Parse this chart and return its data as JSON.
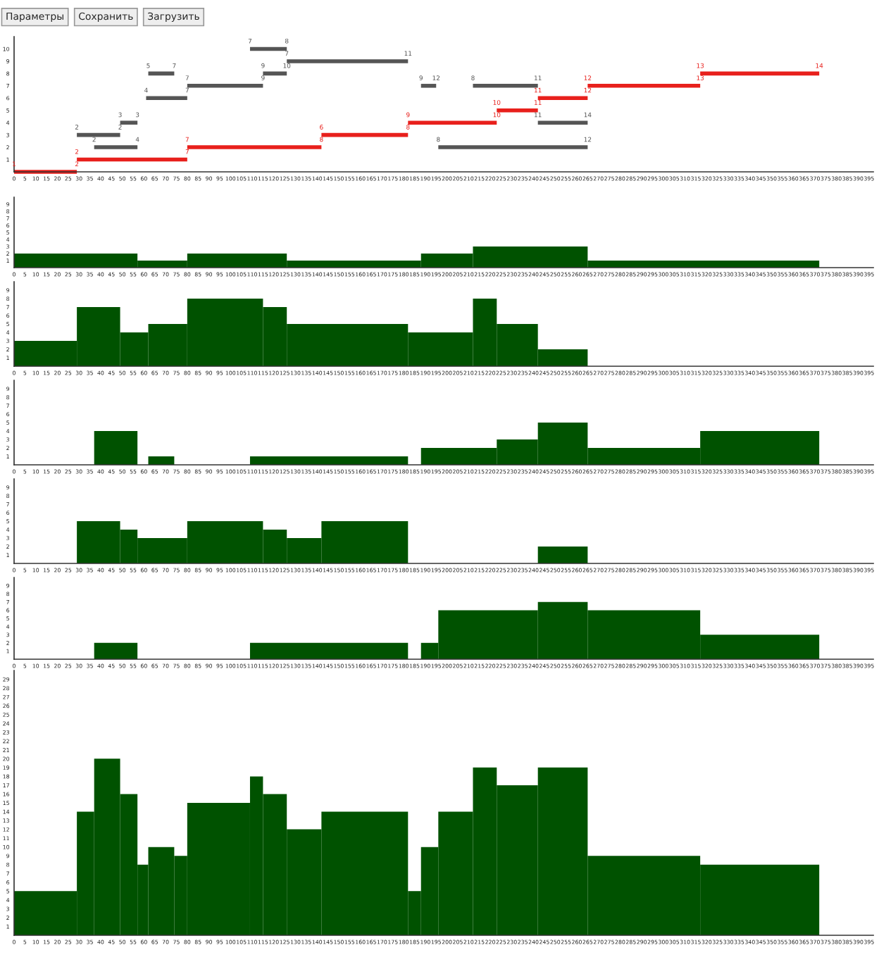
{
  "chart_data": [
    {
      "type": "other",
      "annotations": [
        "Параметры",
        "Сохранить",
        "Загрузить"
      ]
    },
    {
      "type": "line",
      "grid": false,
      "line_style": "solid",
      "marker": "none",
      "xlim": [
        0,
        397
      ],
      "xticks": [
        0,
        5,
        10,
        15,
        20,
        25,
        30,
        35,
        40,
        45,
        50,
        55,
        60,
        65,
        70,
        75,
        80,
        85,
        90,
        95,
        100,
        105,
        110,
        115,
        120,
        125,
        130,
        135,
        140,
        145,
        150,
        155,
        160,
        165,
        170,
        175,
        180,
        185,
        190,
        195,
        200,
        205,
        210,
        215,
        220,
        225,
        230,
        235,
        240,
        245,
        250,
        255,
        260,
        265,
        270,
        275,
        280,
        285,
        290,
        295,
        300,
        305,
        310,
        315,
        320,
        325,
        330,
        335,
        340,
        345,
        350,
        355,
        360,
        365,
        370,
        375,
        380,
        385,
        390,
        395
      ],
      "ylim": [
        0,
        11
      ],
      "yticks": [
        1,
        2,
        3,
        4,
        5,
        6,
        7,
        8,
        9,
        10
      ],
      "series": [
        {
          "color": "#e8201c",
          "x": [
            0,
            29
          ],
          "values": [
            0,
            0
          ]
        },
        {
          "color": "#e8201c",
          "x": [
            29,
            80
          ],
          "values": [
            1,
            1
          ]
        },
        {
          "color": "#555555",
          "x": [
            37,
            57
          ],
          "values": [
            2,
            2
          ]
        },
        {
          "color": "#e8201c",
          "x": [
            80,
            142
          ],
          "values": [
            2,
            2
          ]
        },
        {
          "color": "#555555",
          "x": [
            196,
            265
          ],
          "values": [
            2,
            2
          ]
        },
        {
          "color": "#555555",
          "x": [
            29,
            49
          ],
          "values": [
            3,
            3
          ]
        },
        {
          "color": "#e8201c",
          "x": [
            142,
            182
          ],
          "values": [
            3,
            3
          ]
        },
        {
          "color": "#555555",
          "x": [
            49,
            57
          ],
          "values": [
            4,
            4
          ]
        },
        {
          "color": "#e8201c",
          "x": [
            182,
            223
          ],
          "values": [
            4,
            4
          ]
        },
        {
          "color": "#555555",
          "x": [
            242,
            265
          ],
          "values": [
            4,
            4
          ]
        },
        {
          "color": "#e8201c",
          "x": [
            223,
            242
          ],
          "values": [
            5,
            5
          ]
        },
        {
          "color": "#555555",
          "x": [
            61,
            80
          ],
          "values": [
            6,
            6
          ]
        },
        {
          "color": "#e8201c",
          "x": [
            242,
            265
          ],
          "values": [
            6,
            6
          ]
        },
        {
          "color": "#555555",
          "x": [
            80,
            115
          ],
          "values": [
            7,
            7
          ]
        },
        {
          "color": "#555555",
          "x": [
            188,
            195
          ],
          "values": [
            7,
            7
          ]
        },
        {
          "color": "#555555",
          "x": [
            212,
            242
          ],
          "values": [
            7,
            7
          ]
        },
        {
          "color": "#e8201c",
          "x": [
            265,
            317
          ],
          "values": [
            7,
            7
          ]
        },
        {
          "color": "#555555",
          "x": [
            62,
            74
          ],
          "values": [
            8,
            8
          ]
        },
        {
          "color": "#555555",
          "x": [
            115,
            126
          ],
          "values": [
            8,
            8
          ]
        },
        {
          "color": "#e8201c",
          "x": [
            317,
            372
          ],
          "values": [
            8,
            8
          ]
        },
        {
          "color": "#555555",
          "x": [
            126,
            182
          ],
          "values": [
            9,
            9
          ]
        },
        {
          "color": "#555555",
          "x": [
            109,
            126
          ],
          "values": [
            10,
            10
          ]
        }
      ],
      "annotations": [
        {
          "text": "1",
          "x": 0,
          "y": 0
        },
        {
          "text": "2",
          "x": 29,
          "y": 0
        },
        {
          "text": "2",
          "x": 29,
          "y": 1
        },
        {
          "text": "7",
          "x": 80,
          "y": 1
        },
        {
          "text": "2",
          "x": 37,
          "y": 2
        },
        {
          "text": "4",
          "x": 57,
          "y": 2
        },
        {
          "text": "7",
          "x": 80,
          "y": 2
        },
        {
          "text": "8",
          "x": 142,
          "y": 2
        },
        {
          "text": "8",
          "x": 196,
          "y": 2
        },
        {
          "text": "12",
          "x": 265,
          "y": 2
        },
        {
          "text": "2",
          "x": 29,
          "y": 3
        },
        {
          "text": "2",
          "x": 49,
          "y": 3
        },
        {
          "text": "6",
          "x": 142,
          "y": 3
        },
        {
          "text": "8",
          "x": 182,
          "y": 3
        },
        {
          "text": "3",
          "x": 49,
          "y": 4
        },
        {
          "text": "3",
          "x": 57,
          "y": 4
        },
        {
          "text": "9",
          "x": 182,
          "y": 4
        },
        {
          "text": "10",
          "x": 223,
          "y": 4
        },
        {
          "text": "11",
          "x": 242,
          "y": 4
        },
        {
          "text": "14",
          "x": 265,
          "y": 4
        },
        {
          "text": "10",
          "x": 223,
          "y": 5
        },
        {
          "text": "11",
          "x": 242,
          "y": 5
        },
        {
          "text": "4",
          "x": 61,
          "y": 6
        },
        {
          "text": "7",
          "x": 80,
          "y": 6
        },
        {
          "text": "11",
          "x": 242,
          "y": 6
        },
        {
          "text": "12",
          "x": 265,
          "y": 6
        },
        {
          "text": "7",
          "x": 80,
          "y": 7
        },
        {
          "text": "9",
          "x": 115,
          "y": 7
        },
        {
          "text": "9",
          "x": 188,
          "y": 7
        },
        {
          "text": "12",
          "x": 195,
          "y": 7
        },
        {
          "text": "8",
          "x": 212,
          "y": 7
        },
        {
          "text": "11",
          "x": 242,
          "y": 7
        },
        {
          "text": "12",
          "x": 265,
          "y": 7
        },
        {
          "text": "13",
          "x": 317,
          "y": 7
        },
        {
          "text": "5",
          "x": 62,
          "y": 8
        },
        {
          "text": "7",
          "x": 74,
          "y": 8
        },
        {
          "text": "9",
          "x": 115,
          "y": 8
        },
        {
          "text": "10",
          "x": 126,
          "y": 8
        },
        {
          "text": "13",
          "x": 317,
          "y": 8
        },
        {
          "text": "14",
          "x": 372,
          "y": 8
        },
        {
          "text": "7",
          "x": 126,
          "y": 9
        },
        {
          "text": "11",
          "x": 182,
          "y": 9
        },
        {
          "text": "7",
          "x": 109,
          "y": 10
        },
        {
          "text": "8",
          "x": 126,
          "y": 10
        }
      ]
    },
    {
      "type": "histogram",
      "color": "#005200",
      "grid": false,
      "bins": [
        0,
        57,
        80,
        126,
        188,
        212,
        265,
        372
      ],
      "values": [
        2,
        1,
        2,
        1,
        2,
        3,
        1
      ],
      "xlim": [
        0,
        397
      ],
      "xticks": [
        0,
        5,
        10,
        15,
        20,
        25,
        30,
        35,
        40,
        45,
        50,
        55,
        60,
        65,
        70,
        75,
        80,
        85,
        90,
        95,
        100,
        105,
        110,
        115,
        120,
        125,
        130,
        135,
        140,
        145,
        150,
        155,
        160,
        165,
        170,
        175,
        180,
        185,
        190,
        195,
        200,
        205,
        210,
        215,
        220,
        225,
        230,
        235,
        240,
        245,
        250,
        255,
        260,
        265,
        270,
        275,
        280,
        285,
        290,
        295,
        300,
        305,
        310,
        315,
        320,
        325,
        330,
        335,
        340,
        345,
        350,
        355,
        360,
        365,
        370,
        375,
        380,
        385,
        390,
        395
      ],
      "ylim": [
        0,
        10
      ],
      "yticks": [
        1,
        2,
        3,
        4,
        5,
        6,
        7,
        8,
        9
      ]
    },
    {
      "type": "histogram",
      "color": "#005200",
      "grid": false,
      "bins": [
        0,
        29,
        49,
        62,
        80,
        115,
        126,
        182,
        212,
        223,
        242,
        265
      ],
      "values": [
        3,
        7,
        4,
        5,
        8,
        7,
        5,
        4,
        8,
        5,
        2
      ],
      "xlim": [
        0,
        397
      ],
      "xticks": [
        0,
        5,
        10,
        15,
        20,
        25,
        30,
        35,
        40,
        45,
        50,
        55,
        60,
        65,
        70,
        75,
        80,
        85,
        90,
        95,
        100,
        105,
        110,
        115,
        120,
        125,
        130,
        135,
        140,
        145,
        150,
        155,
        160,
        165,
        170,
        175,
        180,
        185,
        190,
        195,
        200,
        205,
        210,
        215,
        220,
        225,
        230,
        235,
        240,
        245,
        250,
        255,
        260,
        265,
        270,
        275,
        280,
        285,
        290,
        295,
        300,
        305,
        310,
        315,
        320,
        325,
        330,
        335,
        340,
        345,
        350,
        355,
        360,
        365,
        370,
        375,
        380,
        385,
        390,
        395
      ],
      "ylim": [
        0,
        10
      ],
      "yticks": [
        1,
        2,
        3,
        4,
        5,
        6,
        7,
        8,
        9
      ]
    },
    {
      "type": "histogram",
      "color": "#005200",
      "grid": false,
      "bins": [
        37,
        57,
        62,
        74,
        109,
        182,
        188,
        223,
        242,
        265,
        317,
        372
      ],
      "values": [
        4,
        0,
        1,
        0,
        1,
        0,
        2,
        3,
        5,
        2,
        4
      ],
      "xlim": [
        0,
        397
      ],
      "xticks": [
        0,
        5,
        10,
        15,
        20,
        25,
        30,
        35,
        40,
        45,
        50,
        55,
        60,
        65,
        70,
        75,
        80,
        85,
        90,
        95,
        100,
        105,
        110,
        115,
        120,
        125,
        130,
        135,
        140,
        145,
        150,
        155,
        160,
        165,
        170,
        175,
        180,
        185,
        190,
        195,
        200,
        205,
        210,
        215,
        220,
        225,
        230,
        235,
        240,
        245,
        250,
        255,
        260,
        265,
        270,
        275,
        280,
        285,
        290,
        295,
        300,
        305,
        310,
        315,
        320,
        325,
        330,
        335,
        340,
        345,
        350,
        355,
        360,
        365,
        370,
        375,
        380,
        385,
        390,
        395
      ],
      "ylim": [
        0,
        10
      ],
      "yticks": [
        1,
        2,
        3,
        4,
        5,
        6,
        7,
        8,
        9
      ]
    },
    {
      "type": "histogram",
      "color": "#005200",
      "grid": false,
      "bins": [
        29,
        49,
        57,
        80,
        115,
        126,
        142,
        182,
        242,
        265
      ],
      "values": [
        5,
        4,
        3,
        5,
        4,
        3,
        5,
        0,
        2
      ],
      "xlim": [
        0,
        397
      ],
      "xticks": [
        0,
        5,
        10,
        15,
        20,
        25,
        30,
        35,
        40,
        45,
        50,
        55,
        60,
        65,
        70,
        75,
        80,
        85,
        90,
        95,
        100,
        105,
        110,
        115,
        120,
        125,
        130,
        135,
        140,
        145,
        150,
        155,
        160,
        165,
        170,
        175,
        180,
        185,
        190,
        195,
        200,
        205,
        210,
        215,
        220,
        225,
        230,
        235,
        240,
        245,
        250,
        255,
        260,
        265,
        270,
        275,
        280,
        285,
        290,
        295,
        300,
        305,
        310,
        315,
        320,
        325,
        330,
        335,
        340,
        345,
        350,
        355,
        360,
        365,
        370,
        375,
        380,
        385,
        390,
        395
      ],
      "ylim": [
        0,
        10
      ],
      "yticks": [
        1,
        2,
        3,
        4,
        5,
        6,
        7,
        8,
        9
      ]
    },
    {
      "type": "histogram",
      "color": "#005200",
      "grid": false,
      "bins": [
        37,
        57,
        109,
        182,
        188,
        196,
        242,
        265,
        317,
        372
      ],
      "values": [
        2,
        0,
        2,
        0,
        2,
        6,
        7,
        6,
        3
      ],
      "xlim": [
        0,
        397
      ],
      "xticks": [
        0,
        5,
        10,
        15,
        20,
        25,
        30,
        35,
        40,
        45,
        50,
        55,
        60,
        65,
        70,
        75,
        80,
        85,
        90,
        95,
        100,
        105,
        110,
        115,
        120,
        125,
        130,
        135,
        140,
        145,
        150,
        155,
        160,
        165,
        170,
        175,
        180,
        185,
        190,
        195,
        200,
        205,
        210,
        215,
        220,
        225,
        230,
        235,
        240,
        245,
        250,
        255,
        260,
        265,
        270,
        275,
        280,
        285,
        290,
        295,
        300,
        305,
        310,
        315,
        320,
        325,
        330,
        335,
        340,
        345,
        350,
        355,
        360,
        365,
        370,
        375,
        380,
        385,
        390,
        395
      ],
      "ylim": [
        0,
        10
      ],
      "yticks": [
        1,
        2,
        3,
        4,
        5,
        6,
        7,
        8,
        9
      ]
    },
    {
      "type": "histogram",
      "color": "#005200",
      "grid": false,
      "bins": [
        0,
        29,
        37,
        49,
        57,
        62,
        74,
        80,
        109,
        115,
        126,
        142,
        182,
        188,
        196,
        212,
        223,
        242,
        265,
        317,
        372
      ],
      "values": [
        5,
        14,
        20,
        16,
        8,
        10,
        9,
        15,
        18,
        16,
        12,
        14,
        5,
        10,
        14,
        19,
        17,
        19,
        9,
        8
      ],
      "xlim": [
        0,
        397
      ],
      "xticks": [
        0,
        5,
        10,
        15,
        20,
        25,
        30,
        35,
        40,
        45,
        50,
        55,
        60,
        65,
        70,
        75,
        80,
        85,
        90,
        95,
        100,
        105,
        110,
        115,
        120,
        125,
        130,
        135,
        140,
        145,
        150,
        155,
        160,
        165,
        170,
        175,
        180,
        185,
        190,
        195,
        200,
        205,
        210,
        215,
        220,
        225,
        230,
        235,
        240,
        245,
        250,
        255,
        260,
        265,
        270,
        275,
        280,
        285,
        290,
        295,
        300,
        305,
        310,
        315,
        320,
        325,
        330,
        335,
        340,
        345,
        350,
        355,
        360,
        365,
        370,
        375,
        380,
        385,
        390,
        395
      ],
      "ylim": [
        0,
        30
      ],
      "yticks": [
        1,
        2,
        3,
        4,
        5,
        6,
        7,
        8,
        9,
        10,
        11,
        12,
        13,
        14,
        15,
        16,
        17,
        18,
        19,
        20,
        21,
        22,
        23,
        24,
        25,
        26,
        27,
        28,
        29
      ]
    }
  ]
}
